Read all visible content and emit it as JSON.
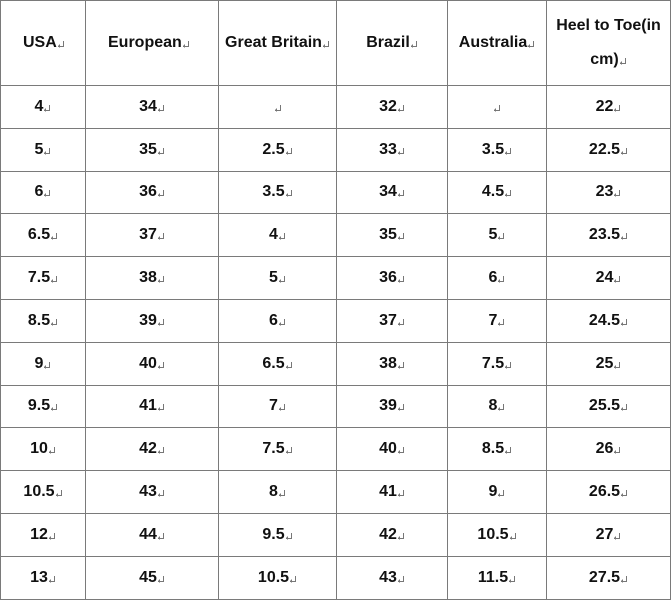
{
  "table": {
    "header": [
      "USA",
      "European",
      "Great Britain",
      "Brazil",
      "Australia",
      "Heel to Toe(in cm)"
    ],
    "rows": [
      [
        "4",
        "34",
        null,
        "32",
        null,
        "22"
      ],
      [
        "5",
        "35",
        "2.5",
        "33",
        "3.5",
        "22.5"
      ],
      [
        "6",
        "36",
        "3.5",
        "34",
        "4.5",
        "23"
      ],
      [
        "6.5",
        "37",
        "4",
        "35",
        "5",
        "23.5"
      ],
      [
        "7.5",
        "38",
        "5",
        "36",
        "6",
        "24"
      ],
      [
        "8.5",
        "39",
        "6",
        "37",
        "7",
        "24.5"
      ],
      [
        "9",
        "40",
        "6.5",
        "38",
        "7.5",
        "25"
      ],
      [
        "9.5",
        "41",
        "7",
        "39",
        "8",
        "25.5"
      ],
      [
        "10",
        "42",
        "7.5",
        "40",
        "8.5",
        "26"
      ],
      [
        "10.5",
        "43",
        "8",
        "41",
        "9",
        "26.5"
      ],
      [
        "12",
        "44",
        "9.5",
        "42",
        "10.5",
        "27"
      ],
      [
        "13",
        "45",
        "10.5",
        "43",
        "11.5",
        "27.5"
      ]
    ]
  }
}
